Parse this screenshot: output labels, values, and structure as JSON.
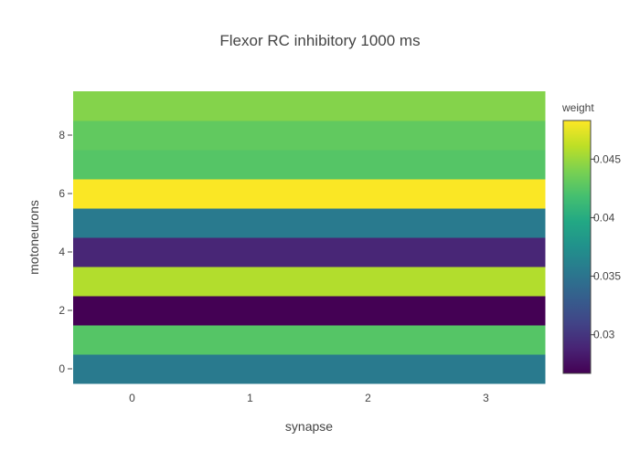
{
  "chart_data": {
    "type": "heatmap",
    "title": "Flexor RC inhibitory 1000 ms",
    "xlabel": "synapse",
    "ylabel": "motoneurons",
    "x": [
      0,
      1,
      2,
      3
    ],
    "y": [
      0,
      1,
      2,
      3,
      4,
      5,
      6,
      7,
      8,
      9
    ],
    "z": [
      [
        0.0355,
        0.0355,
        0.0355,
        0.0355
      ],
      [
        0.0425,
        0.0425,
        0.0425,
        0.0425
      ],
      [
        0.0267,
        0.0267,
        0.0267,
        0.0267
      ],
      [
        0.0458,
        0.0458,
        0.0458,
        0.0458
      ],
      [
        0.029,
        0.029,
        0.029,
        0.029
      ],
      [
        0.0355,
        0.0355,
        0.0355,
        0.0355
      ],
      [
        0.0482,
        0.0482,
        0.0482,
        0.0482
      ],
      [
        0.0425,
        0.0425,
        0.0425,
        0.0425
      ],
      [
        0.043,
        0.043,
        0.043,
        0.043
      ],
      [
        0.0443,
        0.0443,
        0.0443,
        0.0443
      ]
    ],
    "x_ticks": [
      0,
      1,
      2,
      3
    ],
    "y_ticks": [
      0,
      2,
      4,
      6,
      8
    ],
    "xlim": [
      -0.5,
      3.5
    ],
    "ylim": [
      -0.5,
      9.5
    ],
    "colorscale": "viridis",
    "colorbar": {
      "title": "weight",
      "min": 0.0267,
      "max": 0.0483,
      "ticks": [
        0.03,
        0.035,
        0.04,
        0.045
      ],
      "tick_labels": [
        "0.03",
        "0.035",
        "0.04",
        "0.045"
      ]
    },
    "grid": false
  }
}
